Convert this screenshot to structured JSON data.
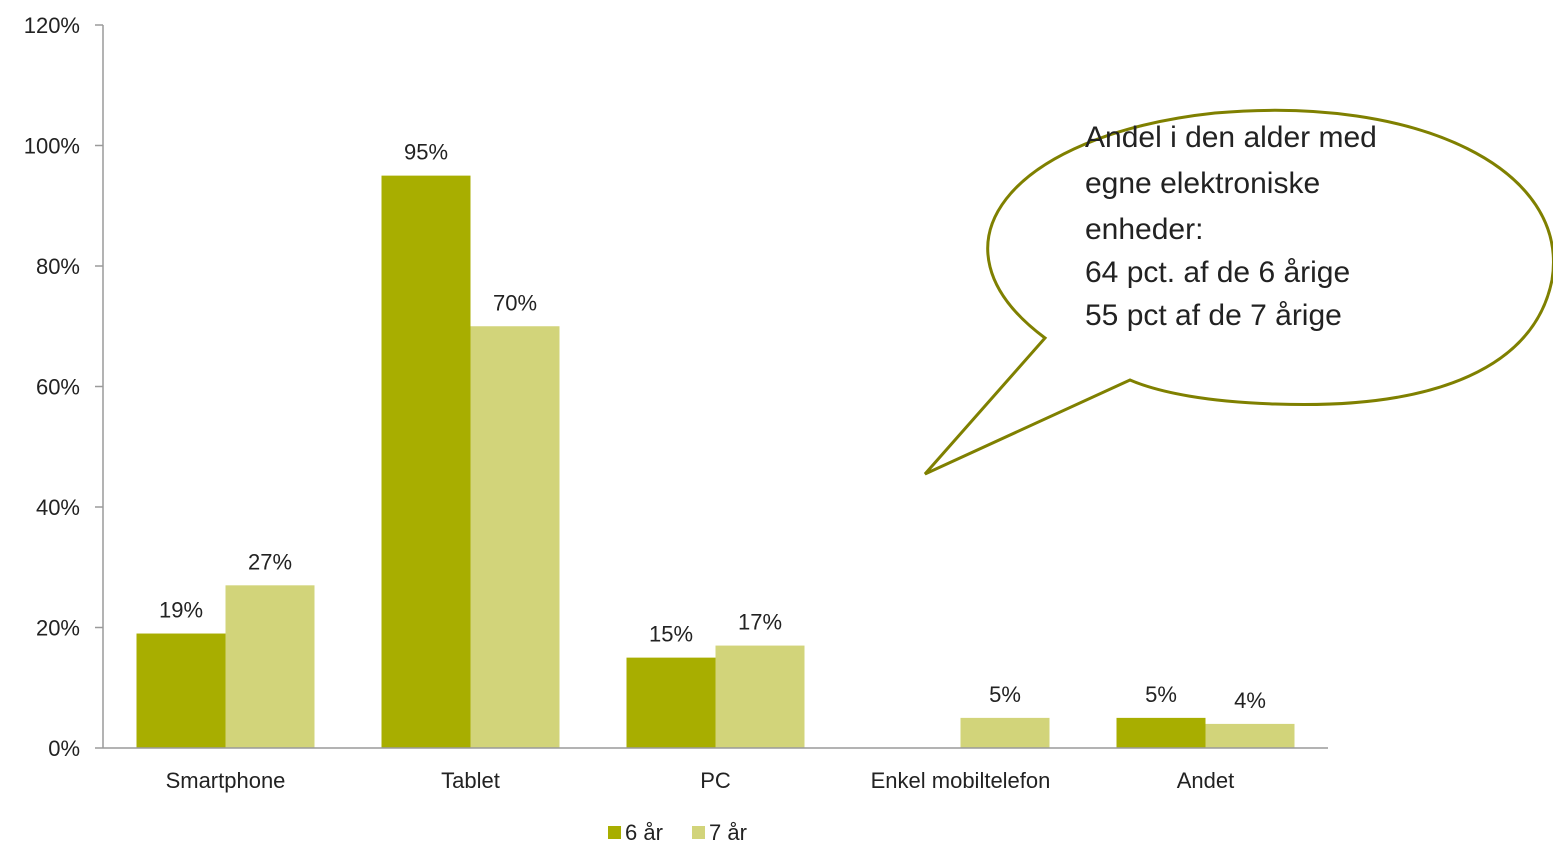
{
  "chart_data": {
    "type": "bar",
    "categories": [
      "Smartphone",
      "Tablet",
      "PC",
      "Enkel mobiltelefon",
      "Andet"
    ],
    "series": [
      {
        "name": "6 år",
        "color": "#a8ae00",
        "values": [
          19,
          95,
          15,
          null,
          5
        ],
        "labels": [
          "19%",
          "95%",
          "15%",
          "",
          "5%"
        ]
      },
      {
        "name": "7 år",
        "color": "#d2d47a",
        "values": [
          27,
          70,
          17,
          5,
          4
        ],
        "labels": [
          "27%",
          "70%",
          "17%",
          "5%",
          "4%"
        ]
      }
    ],
    "ylim": [
      0,
      120
    ],
    "yticks": [
      "0%",
      "20%",
      "40%",
      "60%",
      "80%",
      "100%",
      "120%"
    ],
    "ytick_values": [
      0,
      20,
      40,
      60,
      80,
      100,
      120
    ],
    "grid": false,
    "legend_position": "bottom",
    "annotation": {
      "lines": [
        "Andel i den alder med",
        "egne elektroniske",
        "enheder:",
        "64 pct. af de 6 årige",
        "55 pct af de 7 årige"
      ],
      "border_color": "#7f8000"
    }
  }
}
